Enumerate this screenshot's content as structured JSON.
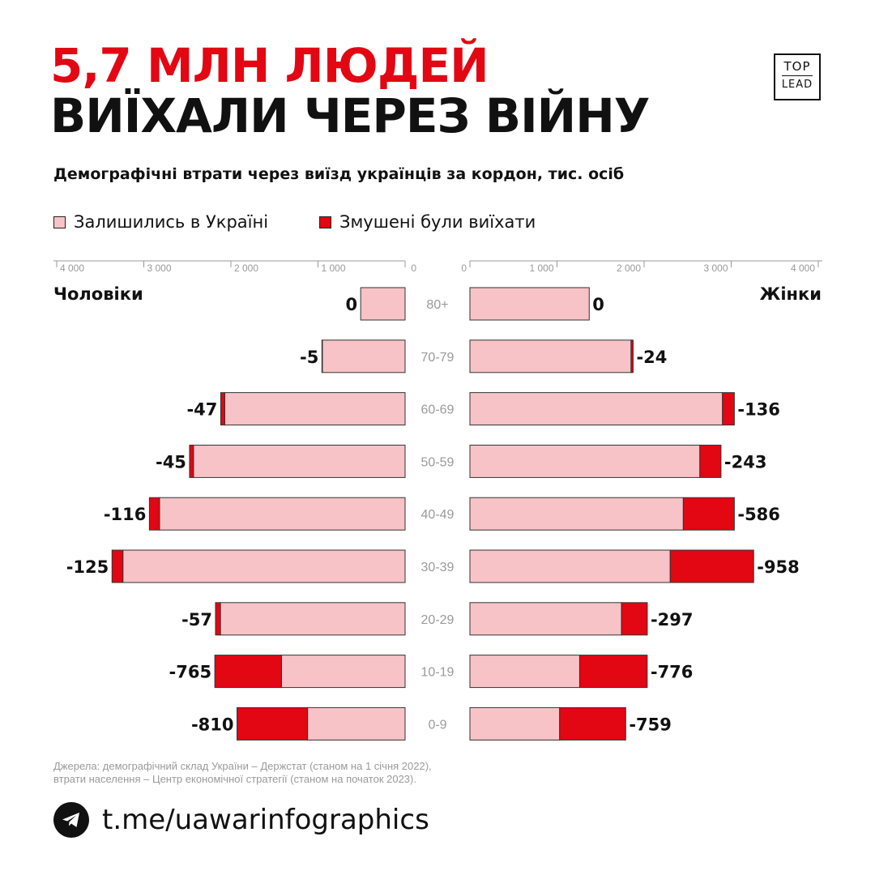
{
  "header": {
    "title_line1": "5,7 МЛН ЛЮДЕЙ",
    "title_line2": "ВИЇХАЛИ ЧЕРЕЗ ВІЙНУ",
    "subtitle": "Демографічні втрати через виїзд українців за кордон, тис. осіб"
  },
  "logo": {
    "line1": "TOP",
    "line2": "LEAD"
  },
  "legend": {
    "stayed": "Залишились в Україні",
    "left": "Змушені були виїхати"
  },
  "colors": {
    "stayed": "#f7c3c6",
    "left": "#e30613",
    "accent": "#e30613",
    "text": "#111111",
    "muted": "#9a9a9a"
  },
  "chart_data": {
    "type": "bar",
    "orientation": "horizontal population pyramid (stacked)",
    "left_title": "Чоловіки",
    "right_title": "Жінки",
    "axis_ticks": [
      "4 000",
      "3 000",
      "2 000",
      "1 000",
      "0"
    ],
    "axis_ticks_right": [
      "0",
      "1 000",
      "2 000",
      "3 000",
      "4 000"
    ],
    "xlim": [
      0,
      4000
    ],
    "categories": [
      "80+",
      "70-79",
      "60-69",
      "50-59",
      "40-49",
      "30-39",
      "20-29",
      "10-19",
      "0-9"
    ],
    "series": [
      {
        "name": "Залишились в Україні",
        "side": "left",
        "values": [
          510,
          950,
          2070,
          2430,
          2820,
          3240,
          2120,
          1420,
          1120
        ]
      },
      {
        "name": "Змушені були виїхати",
        "side": "left",
        "values": [
          0,
          5,
          47,
          45,
          116,
          125,
          57,
          765,
          810
        ]
      },
      {
        "name": "Залишились в Україні",
        "side": "right",
        "values": [
          1370,
          1850,
          2900,
          2640,
          2450,
          2300,
          1740,
          1260,
          1030
        ]
      },
      {
        "name": "Змушені були виїхати",
        "side": "right",
        "values": [
          0,
          24,
          136,
          243,
          586,
          958,
          297,
          776,
          759
        ]
      }
    ],
    "labels_left": [
      "0",
      "-5",
      "-47",
      "-45",
      "-116",
      "-125",
      "-57",
      "-765",
      "-810"
    ],
    "labels_right": [
      "0",
      "-24",
      "-136",
      "-243",
      "-586",
      "-958",
      "-297",
      "-776",
      "-759"
    ]
  },
  "source": {
    "line1": "Джерела: демографічний склад України – Держстат (станом на 1 січня 2022),",
    "line2": "втрати населення – Центр економічної стратегії (станом на початок 2023)."
  },
  "footer": {
    "link": "t.me/uawarinfographics",
    "icon": "telegram-icon"
  }
}
